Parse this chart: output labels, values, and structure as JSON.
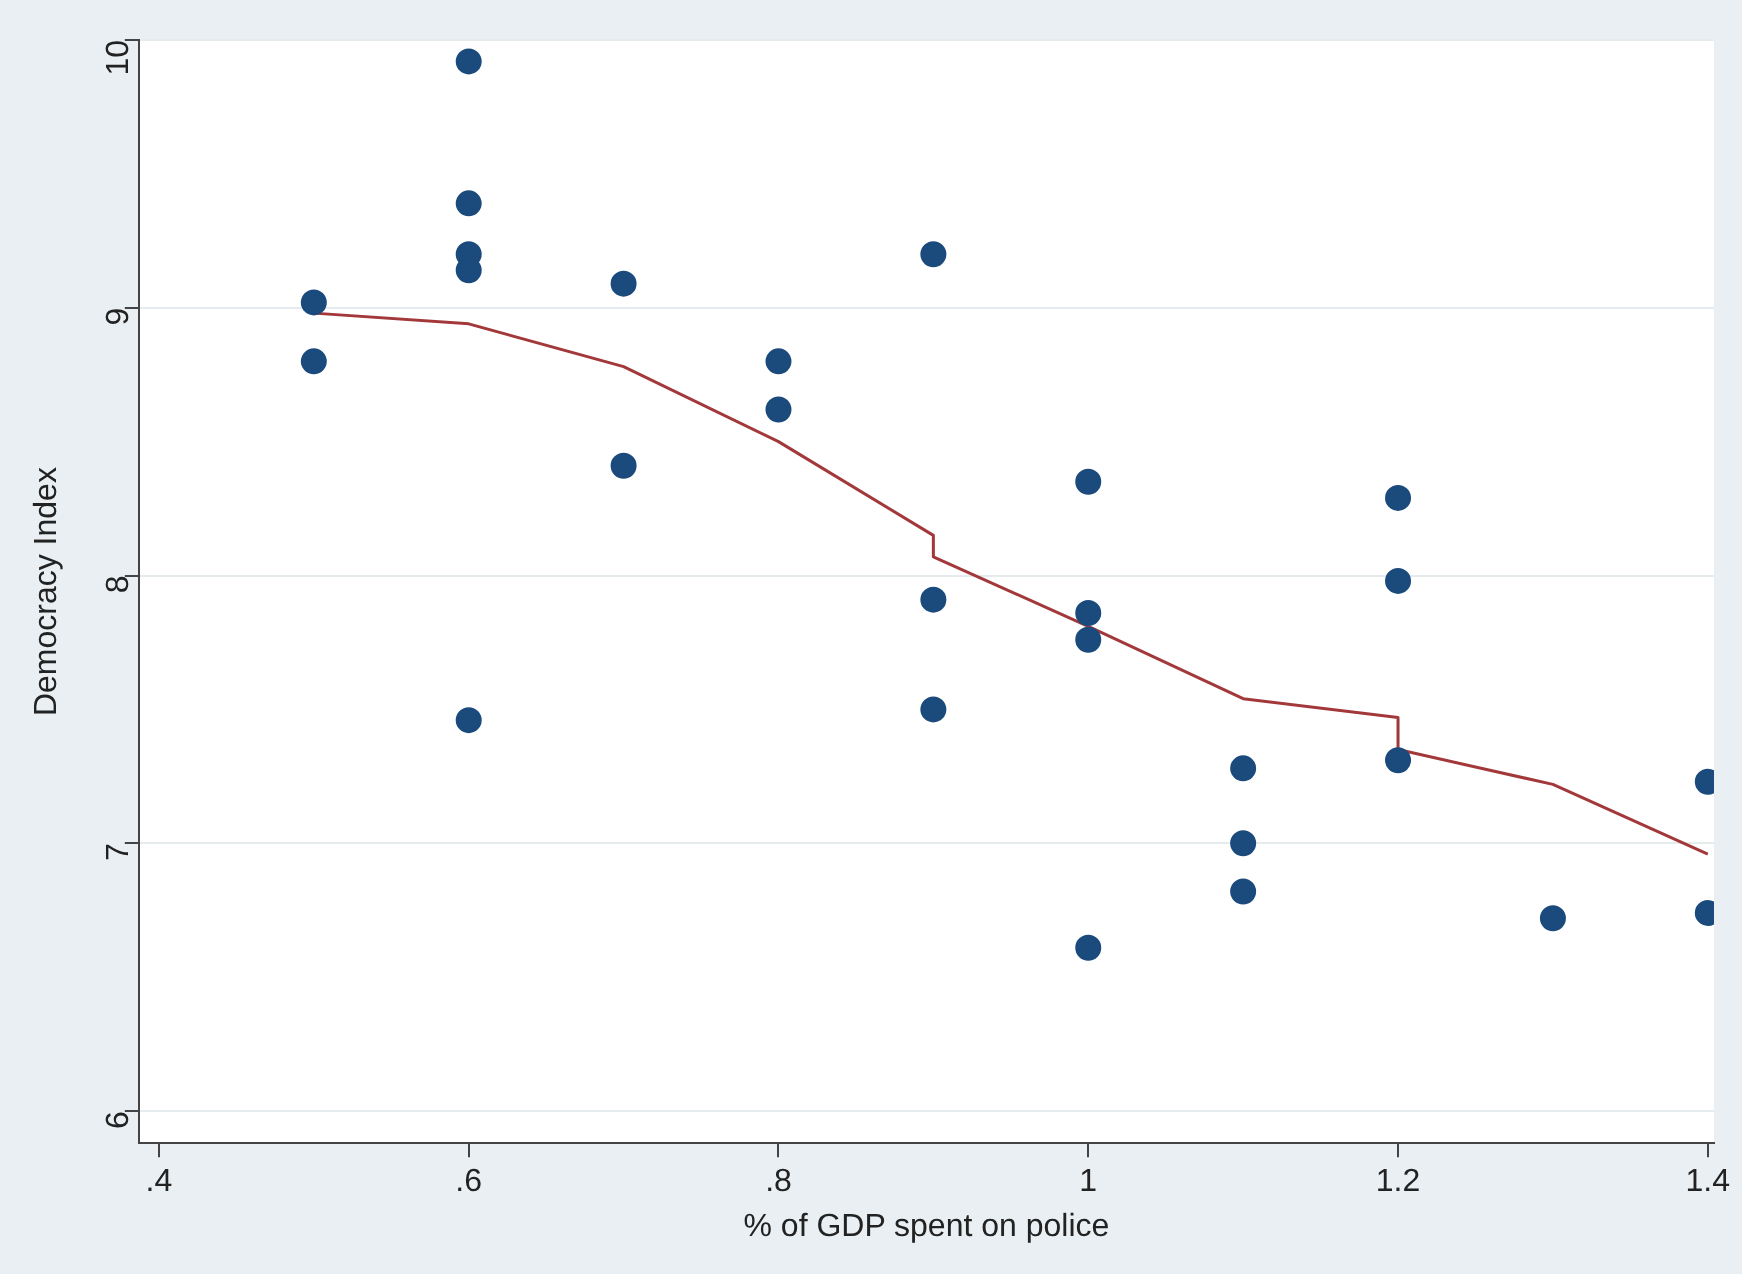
{
  "chart_data": {
    "type": "scatter",
    "xlabel": "% of GDP spent on police",
    "ylabel": "Democracy Index",
    "xlim": [
      0.387,
      1.404
    ],
    "ylim": [
      5.88,
      10
    ],
    "xticks": [
      {
        "value": 0.4,
        "label": ".4"
      },
      {
        "value": 0.6,
        "label": ".6"
      },
      {
        "value": 0.8,
        "label": ".8"
      },
      {
        "value": 1,
        "label": "1"
      },
      {
        "value": 1.2,
        "label": "1.2"
      },
      {
        "value": 1.4,
        "label": "1.4"
      }
    ],
    "yticks": [
      6,
      7,
      8,
      9,
      10
    ],
    "grid": "y",
    "marker": "circle",
    "series": [
      {
        "color": "#1b4a7c",
        "x": [
          0.5,
          0.5,
          0.6,
          0.6,
          0.6,
          0.6,
          0.6,
          0.7,
          0.7,
          0.8,
          0.8,
          0.9,
          0.9,
          0.9,
          1,
          1,
          1,
          1,
          1.1,
          1.1,
          1.1,
          1.2,
          1.2,
          1.2,
          1.3,
          1.4,
          1.4
        ],
        "values": [
          9.02,
          8.8,
          9.92,
          9.39,
          9.2,
          9.14,
          7.46,
          9.09,
          8.41,
          8.8,
          8.62,
          9.2,
          7.91,
          7.5,
          8.35,
          7.86,
          7.76,
          6.61,
          7.28,
          7,
          6.82,
          8.29,
          7.98,
          7.31,
          6.72,
          7.23,
          6.74
        ]
      },
      {
        "type": "line",
        "marker": "none",
        "color": "#a3383a",
        "x": [
          0.5,
          0.6,
          0.7,
          0.8,
          0.9,
          0.9,
          1,
          1.1,
          1.2,
          1.2,
          1.3,
          1.4
        ],
        "values": [
          8.98,
          8.94,
          8.78,
          8.5,
          8.15,
          8.07,
          7.81,
          7.54,
          7.47,
          7.35,
          7.22,
          6.96
        ]
      }
    ]
  }
}
